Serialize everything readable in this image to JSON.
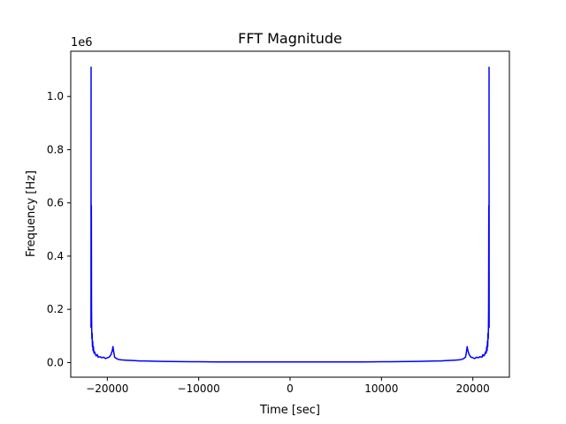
{
  "chart_data": {
    "type": "line",
    "title": "FFT Magnitude",
    "xlabel": "Time [sec]",
    "ylabel": "Frequency [Hz]",
    "y_offset_label": "1e6",
    "xlim": [
      -24000,
      24000
    ],
    "ylim": [
      -55000,
      1170000
    ],
    "x_ticks": [
      -20000,
      -10000,
      0,
      10000,
      20000
    ],
    "x_tick_labels": [
      "−20000",
      "−10000",
      "0",
      "10000",
      "20000"
    ],
    "y_ticks": [
      0,
      200000,
      400000,
      600000,
      800000,
      1000000
    ],
    "y_tick_labels": [
      "0.0",
      "0.2",
      "0.4",
      "0.6",
      "0.8",
      "1.0"
    ],
    "grid": false,
    "series": [
      {
        "color": "#0000ff",
        "x": [
          -21780,
          -21775,
          -21770,
          -21760,
          -21745,
          -21730,
          -21710,
          -21690,
          -21660,
          -21630,
          -21600,
          -21560,
          -21520,
          -21450,
          -21380,
          -21300,
          -21200,
          -21100,
          -21000,
          -20800,
          -20600,
          -20400,
          -20200,
          -20000,
          -19800,
          -19600,
          -19450,
          -19380,
          -19300,
          -19200,
          -19000,
          -18800,
          -18500,
          -18000,
          -17500,
          -17000,
          -16500,
          -16000,
          -15000,
          -14000,
          -13000,
          -12000,
          -11000,
          -10000,
          -8000,
          -6000,
          -4000,
          -2000,
          0,
          2000,
          4000,
          6000,
          8000,
          10000,
          11000,
          12000,
          13000,
          14000,
          15000,
          16000,
          16500,
          17000,
          17500,
          18000,
          18500,
          18800,
          19000,
          19200,
          19300,
          19380,
          19450,
          19600,
          19800,
          20000,
          20200,
          20400,
          20600,
          20800,
          21000,
          21100,
          21200,
          21300,
          21380,
          21450,
          21520,
          21560,
          21600,
          21630,
          21660,
          21690,
          21710,
          21730,
          21745,
          21760,
          21770,
          21775,
          21780
        ],
        "y": [
          130000,
          1110000,
          650000,
          230000,
          590000,
          200000,
          130000,
          90000,
          110000,
          60000,
          80000,
          45000,
          60000,
          35000,
          40000,
          30000,
          25000,
          30000,
          20000,
          22000,
          18000,
          20000,
          15000,
          18000,
          20000,
          30000,
          45000,
          60000,
          40000,
          20000,
          15000,
          12000,
          10000,
          9000,
          8000,
          7000,
          6000,
          6000,
          5000,
          4500,
          4000,
          3500,
          3000,
          3000,
          2500,
          2000,
          2000,
          2000,
          2000,
          2000,
          2000,
          2000,
          2500,
          3000,
          3000,
          3500,
          4000,
          4500,
          5000,
          6000,
          6000,
          7000,
          8000,
          9000,
          10000,
          12000,
          15000,
          20000,
          40000,
          60000,
          45000,
          30000,
          20000,
          18000,
          15000,
          20000,
          18000,
          22000,
          20000,
          30000,
          25000,
          30000,
          40000,
          35000,
          60000,
          45000,
          80000,
          60000,
          110000,
          90000,
          130000,
          200000,
          590000,
          230000,
          650000,
          1110000,
          130000
        ]
      }
    ]
  }
}
